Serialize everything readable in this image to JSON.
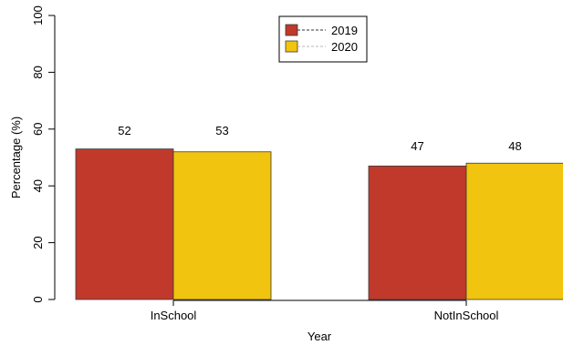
{
  "chart_data": {
    "type": "bar",
    "xlabel": "Year",
    "ylabel": "Percentage (%)",
    "ylim": [
      0,
      100
    ],
    "yticks": [
      "0",
      "20",
      "40",
      "60",
      "80",
      "100"
    ],
    "categories": [
      "InSchool",
      "NotInSchool"
    ],
    "series": [
      {
        "name": "2019",
        "values": [
          53,
          47
        ],
        "color": "#c0392b"
      },
      {
        "name": "2020",
        "values": [
          52,
          48
        ],
        "color": "#f1c40f"
      }
    ],
    "data_labels": [
      [
        "52",
        "53"
      ],
      [
        "47",
        "48"
      ]
    ],
    "legend_position": "top-center",
    "grid": false
  }
}
